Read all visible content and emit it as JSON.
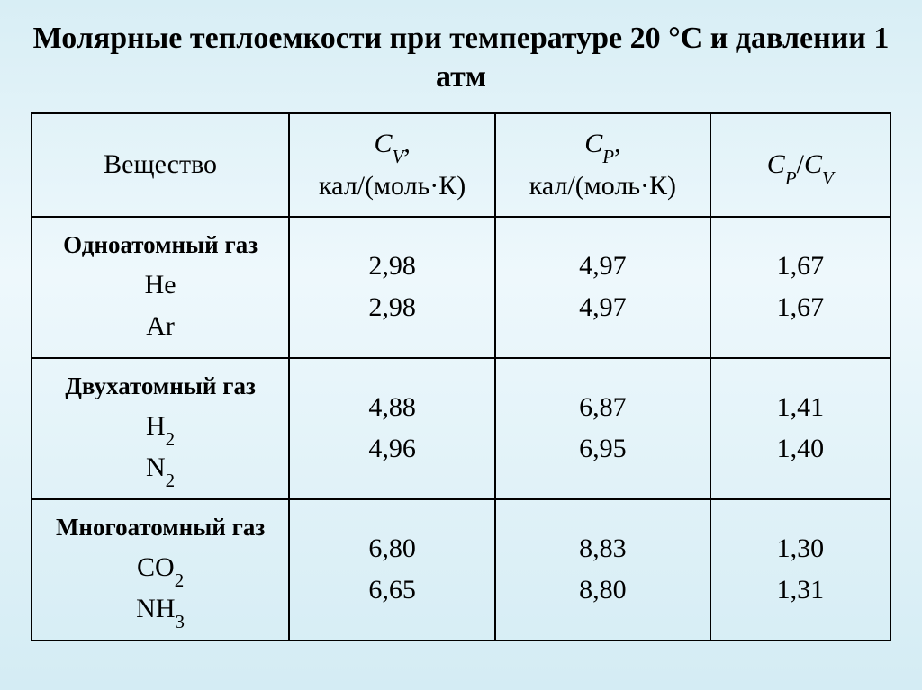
{
  "title": "Молярные теплоемкости при температуре 20 °С и давлении 1 атм",
  "headers": {
    "substance": "Вещество",
    "cv_sym": "C",
    "cv_sub": "V",
    "cp_sym": "C",
    "cp_sub": "P",
    "unit_sep": ",",
    "unit": "кал/(моль·К)",
    "ratio_cp": "C",
    "ratio_cp_sub": "P",
    "ratio_slash": "/",
    "ratio_cv": "C",
    "ratio_cv_sub": "V"
  },
  "groups": [
    {
      "label": "Одноатомный газ",
      "rows": [
        {
          "name": "He",
          "sub": "",
          "cv": "2,98",
          "cp": "4,97",
          "ratio": "1,67"
        },
        {
          "name": "Ar",
          "sub": "",
          "cv": "2,98",
          "cp": "4,97",
          "ratio": "1,67"
        }
      ]
    },
    {
      "label": "Двухатомный газ",
      "rows": [
        {
          "name": "H",
          "sub": "2",
          "cv": "4,88",
          "cp": "6,87",
          "ratio": "1,41"
        },
        {
          "name": "N",
          "sub": "2",
          "cv": "4,96",
          "cp": "6,95",
          "ratio": "1,40"
        }
      ]
    },
    {
      "label": "Многоатомный газ",
      "rows": [
        {
          "name": "СО",
          "sub": "2",
          "cv": "6,80",
          "cp": "8,83",
          "ratio": "1,30"
        },
        {
          "name": "NH",
          "sub": "3",
          "cv": "6,65",
          "cp": "8,80",
          "ratio": "1,31"
        }
      ]
    }
  ]
}
